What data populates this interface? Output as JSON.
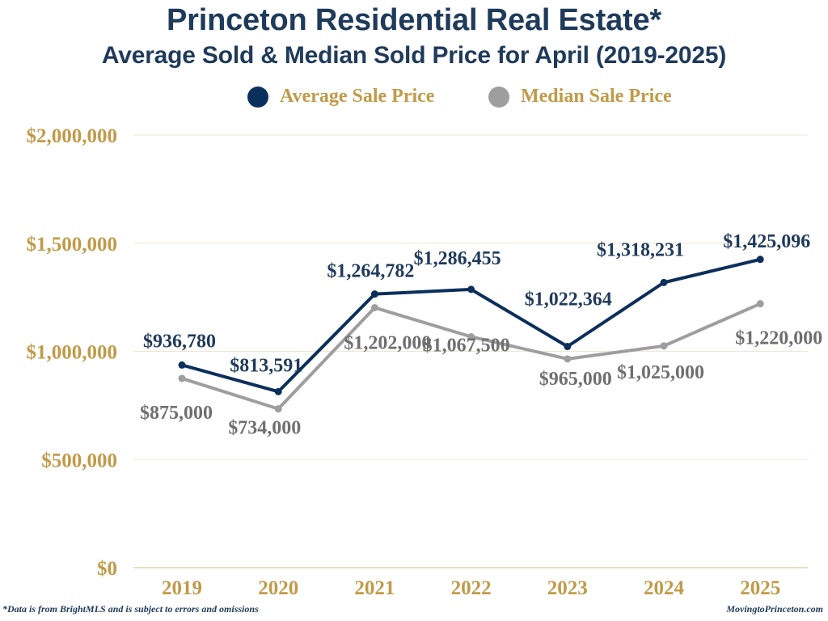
{
  "chart_data": {
    "type": "line",
    "title": "Princeton Residential Real Estate*",
    "subtitle": "Average Sold & Median Sold Price for April (2019-2025)",
    "xlabel": "",
    "ylabel": "",
    "categories": [
      "2019",
      "2020",
      "2021",
      "2022",
      "2023",
      "2024",
      "2025"
    ],
    "ylim": [
      0,
      2000000
    ],
    "yticks": [
      0,
      500000,
      1000000,
      1500000,
      2000000
    ],
    "ytick_labels": [
      "$0",
      "$500,000",
      "$1,000,000",
      "$1,500,000",
      "$2,000,000"
    ],
    "grid": true,
    "legend_position": "top-center",
    "series": [
      {
        "name": "Average Sale Price",
        "color": "#0b2f5c",
        "values": [
          936780,
          813591,
          1264782,
          1286455,
          1022364,
          1318231,
          1425096
        ],
        "labels": [
          "$936,780",
          "$813,591",
          "$1,264,782",
          "$1,286,455",
          "$1,022,364",
          "$1,318,231",
          "$1,425,096"
        ]
      },
      {
        "name": "Median Sale Price",
        "color": "#9e9e9e",
        "values": [
          875000,
          734000,
          1202000,
          1067500,
          965000,
          1025000,
          1220000
        ],
        "labels": [
          "$875,000",
          "$734,000",
          "$1,202,000",
          "$1,067,500",
          "$965,000",
          "$1,025,000",
          "$1,220,000"
        ]
      }
    ]
  },
  "footer": {
    "disclaimer": "*Data is from BrightMLS and is subject to errors and omissions",
    "source": "MovingtoPrinceton.com"
  },
  "colors": {
    "title": "#1f3a5a",
    "axis_text": "#c19a48",
    "grid": "#f1e6cf",
    "baseline": "#e3d3a8"
  }
}
